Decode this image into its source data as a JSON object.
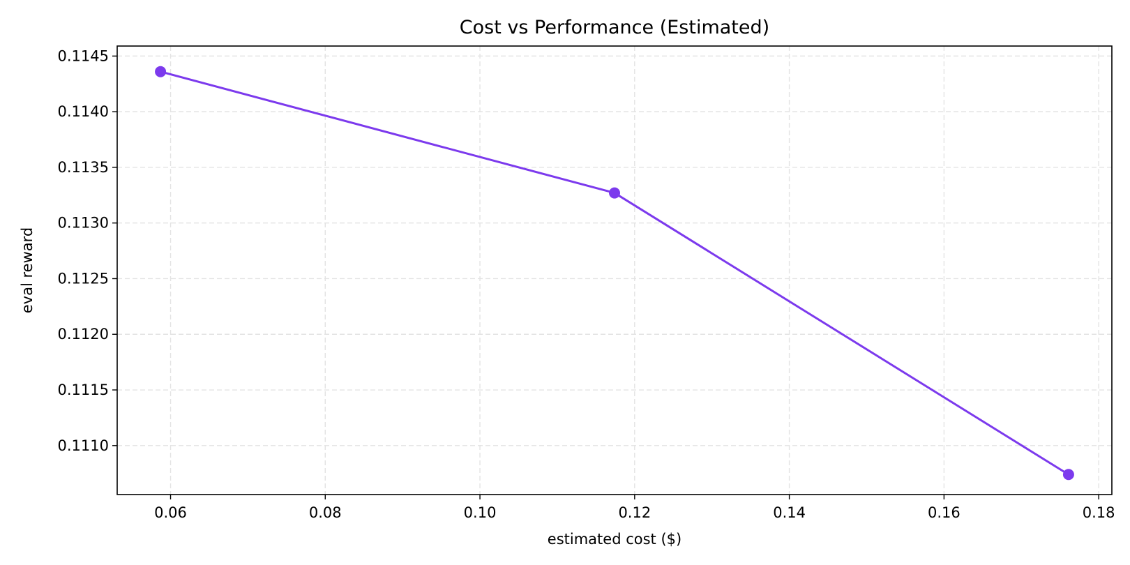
{
  "chart_data": {
    "type": "line",
    "title": "Cost vs Performance (Estimated)",
    "xlabel": "estimated cost ($)",
    "ylabel": "eval reward",
    "xlim": [
      0.0531,
      0.1817
    ],
    "ylim": [
      0.11056,
      0.11459
    ],
    "x_ticks": [
      "0.06",
      "0.08",
      "0.10",
      "0.12",
      "0.14",
      "0.16",
      "0.18"
    ],
    "y_ticks": [
      "0.1110",
      "0.1115",
      "0.1120",
      "0.1125",
      "0.1130",
      "0.1135",
      "0.1140",
      "0.1145"
    ],
    "grid": true,
    "series": [
      {
        "color": "#7c3aed",
        "marker": "circle",
        "points": [
          {
            "x": 0.0587,
            "y": 0.11436
          },
          {
            "x": 0.1174,
            "y": 0.11327
          },
          {
            "x": 0.1761,
            "y": 0.11074
          }
        ]
      }
    ]
  }
}
